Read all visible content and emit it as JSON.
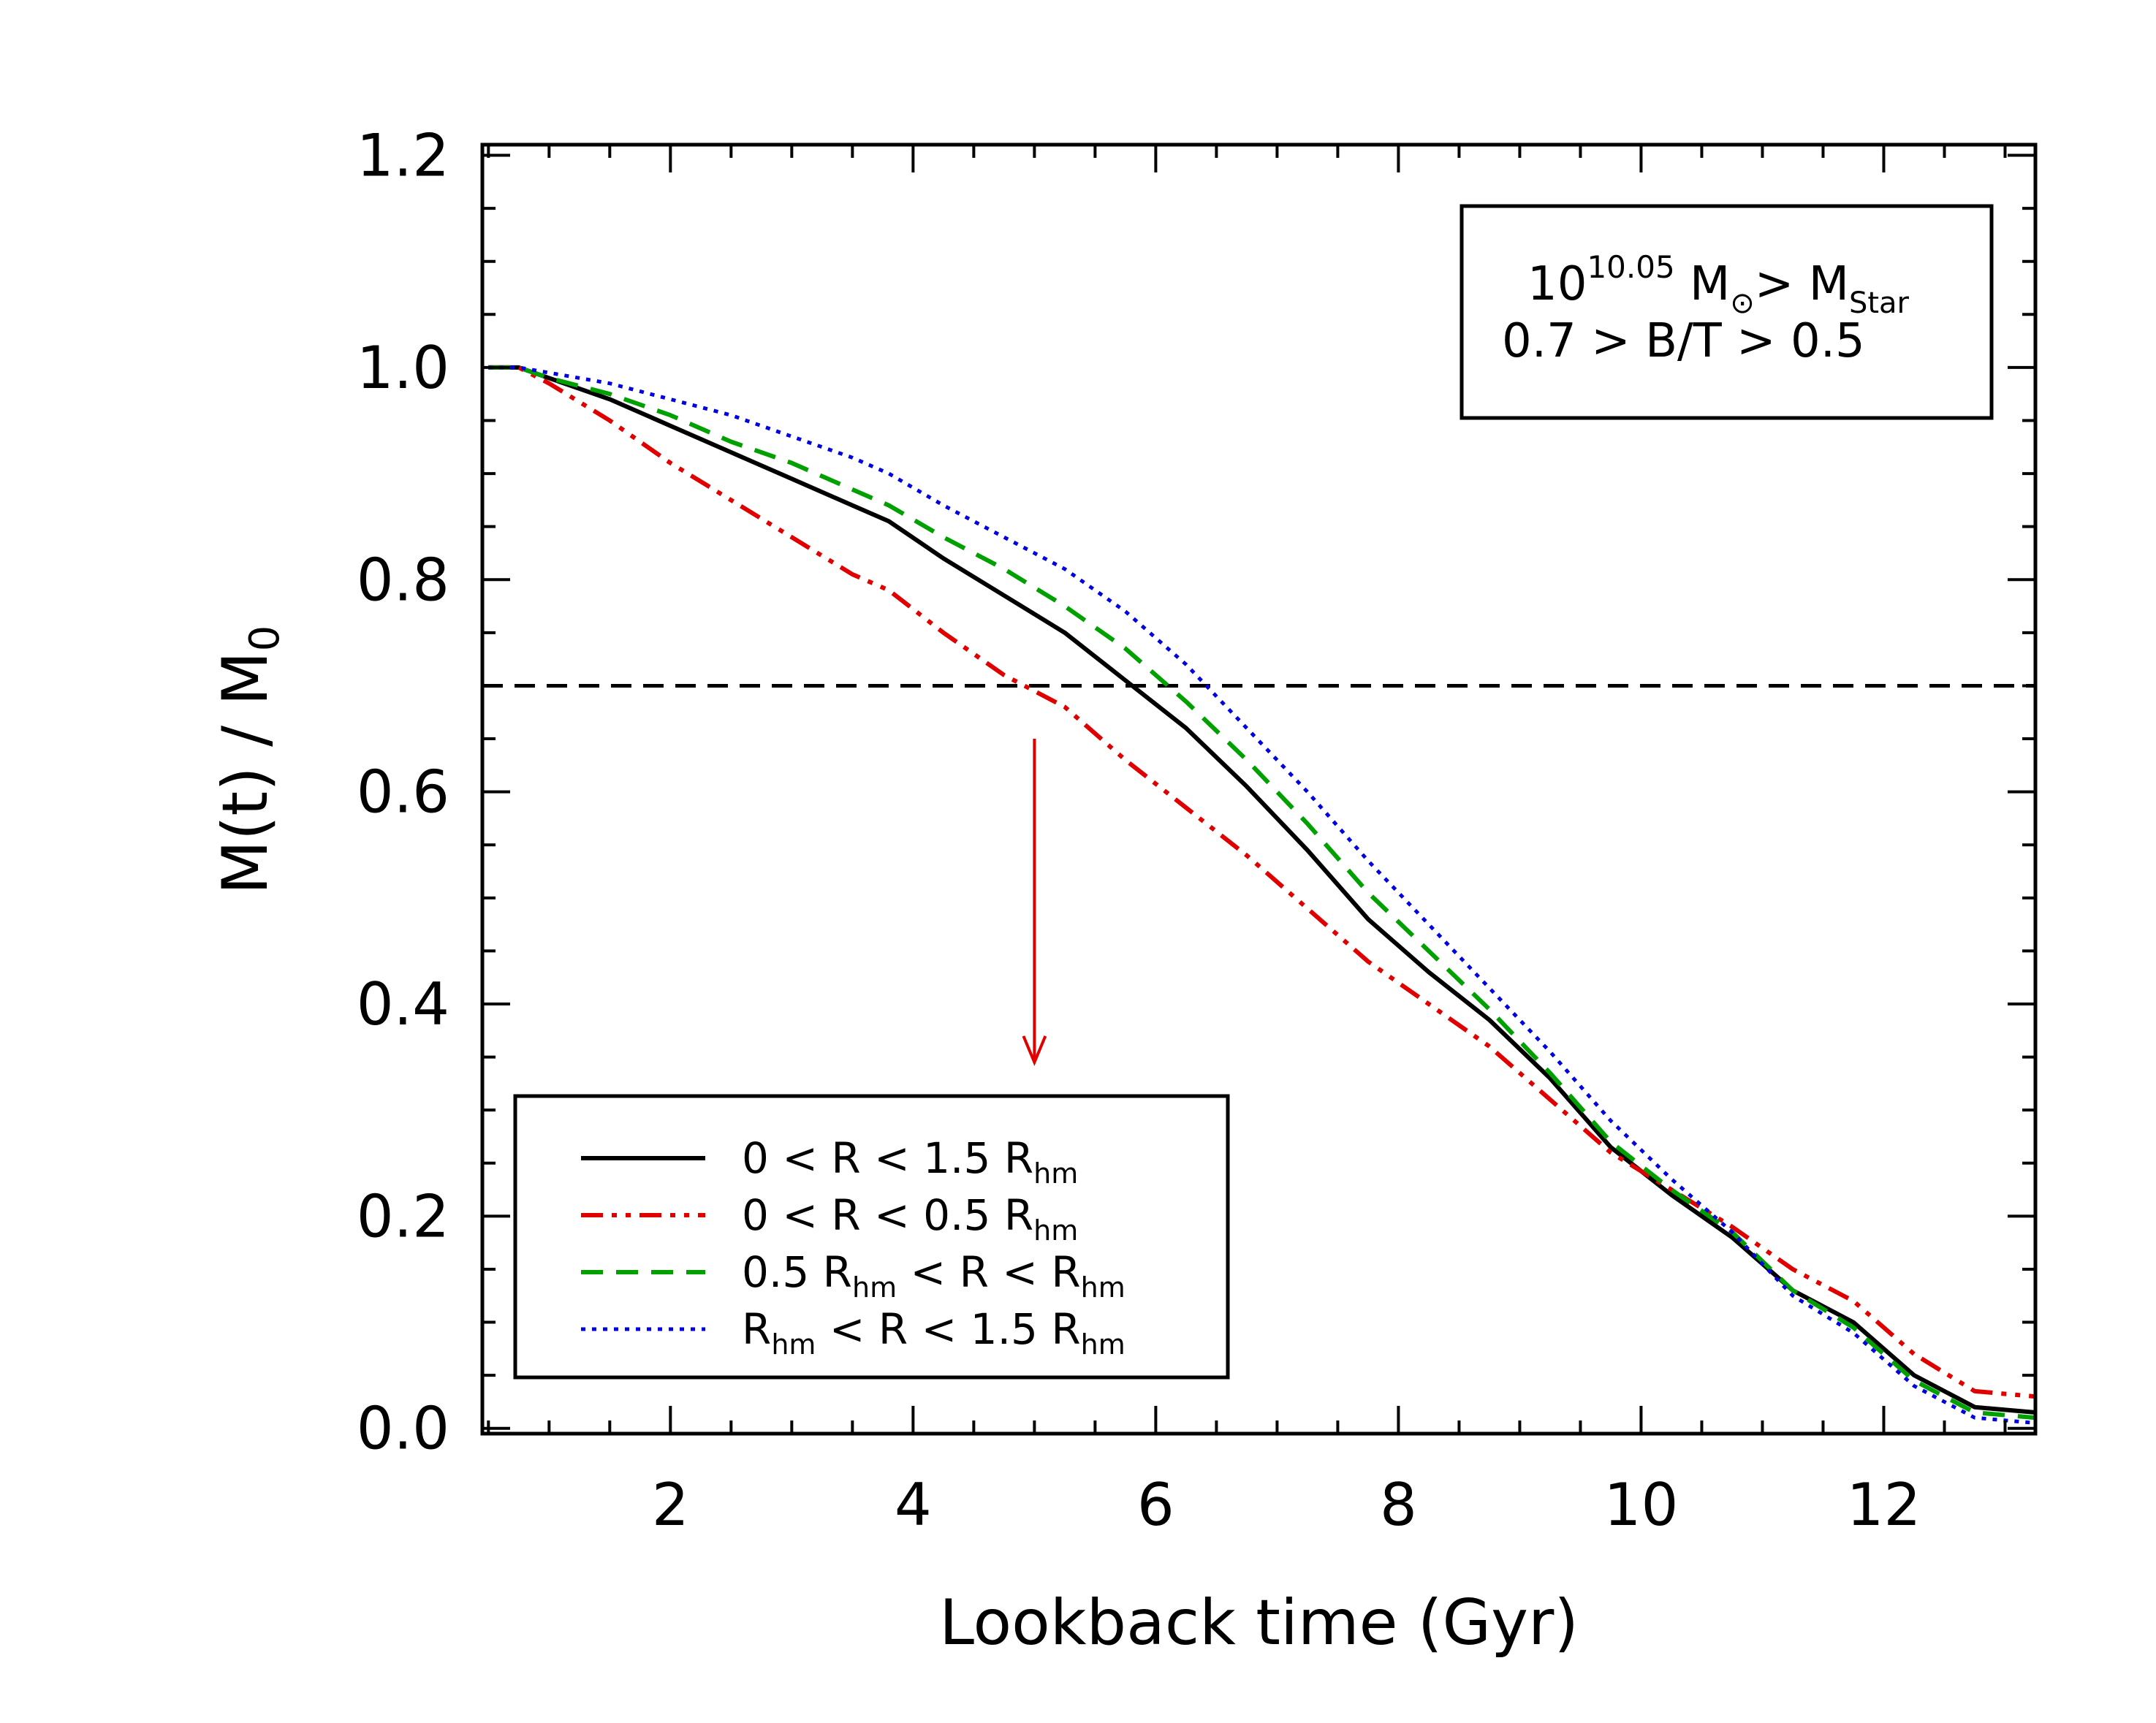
{
  "chart_data": {
    "type": "line",
    "xlabel": "Lookback time (Gyr)",
    "ylabel_main": "M(t)  /  M",
    "ylabel_sub": "0",
    "xlim": [
      0.45,
      13.25
    ],
    "ylim": [
      -0.005,
      1.21
    ],
    "x_ticks": [
      2,
      4,
      6,
      8,
      10,
      12
    ],
    "y_ticks": [
      0.0,
      0.2,
      0.4,
      0.6,
      0.8,
      1.0,
      1.2
    ],
    "y_tick_labels": [
      "0.0",
      "0.2",
      "0.4",
      "0.6",
      "0.8",
      "1.0",
      "1.2"
    ],
    "reference_line": {
      "y": 0.7,
      "style": "dashed",
      "color": "#000000"
    },
    "arrow": {
      "x": 5.0,
      "from_y": 0.65,
      "to_y": 0.345,
      "color": "#e00000"
    },
    "annotation": {
      "line1": {
        "pre": "10",
        "sup": "10.05",
        "mid": " M",
        "sun": "⊙",
        "gt": "> M",
        "sub": "Star"
      },
      "line2": "0.7 > B/T > 0.5"
    },
    "series": [
      {
        "style": "solid",
        "color": "#000000",
        "legend": {
          "parts": [
            [
              "0 < R < 1.5 R",
              ""
            ],
            [
              "hm",
              "sub"
            ]
          ]
        },
        "x": [
          0.5,
          0.75,
          1.0,
          1.5,
          2.0,
          2.5,
          3.0,
          3.5,
          3.8,
          4.25,
          4.75,
          5.25,
          5.75,
          6.25,
          6.75,
          7.25,
          7.75,
          8.25,
          8.75,
          9.25,
          9.75,
          10.25,
          10.75,
          11.25,
          11.75,
          12.25,
          12.75,
          13.25
        ],
        "y": [
          1.0,
          1.0,
          0.99,
          0.97,
          0.945,
          0.92,
          0.895,
          0.87,
          0.855,
          0.82,
          0.785,
          0.75,
          0.705,
          0.66,
          0.605,
          0.545,
          0.48,
          0.43,
          0.385,
          0.33,
          0.265,
          0.22,
          0.18,
          0.13,
          0.1,
          0.05,
          0.02,
          0.015
        ]
      },
      {
        "style": "dashdotdot",
        "color": "#e00000",
        "legend": {
          "parts": [
            [
              "0 < R < 0.5 R",
              ""
            ],
            [
              "hm",
              "sub"
            ]
          ]
        },
        "x": [
          0.5,
          0.75,
          1.0,
          1.5,
          2.0,
          2.5,
          3.0,
          3.5,
          3.8,
          4.25,
          4.75,
          5.25,
          5.75,
          6.25,
          6.75,
          7.25,
          7.75,
          8.25,
          8.75,
          9.25,
          9.75,
          10.25,
          10.75,
          11.25,
          11.75,
          12.25,
          12.75,
          13.25
        ],
        "y": [
          1.0,
          1.0,
          0.985,
          0.95,
          0.91,
          0.875,
          0.84,
          0.805,
          0.79,
          0.75,
          0.71,
          0.68,
          0.63,
          0.585,
          0.54,
          0.49,
          0.44,
          0.4,
          0.36,
          0.31,
          0.26,
          0.225,
          0.19,
          0.15,
          0.12,
          0.07,
          0.035,
          0.03
        ]
      },
      {
        "style": "dashed",
        "color": "#00a000",
        "legend": {
          "parts": [
            [
              "0.5 R",
              ""
            ],
            [
              "hm",
              "sub"
            ],
            [
              " < R <  R",
              ""
            ],
            [
              "hm",
              "sub"
            ]
          ]
        },
        "x": [
          0.5,
          0.75,
          1.0,
          1.5,
          2.0,
          2.5,
          3.0,
          3.5,
          3.8,
          4.25,
          4.75,
          5.25,
          5.75,
          6.25,
          6.75,
          7.25,
          7.75,
          8.25,
          8.75,
          9.25,
          9.75,
          10.25,
          10.75,
          11.25,
          11.75,
          12.25,
          12.75,
          13.25
        ],
        "y": [
          1.0,
          1.0,
          0.99,
          0.975,
          0.955,
          0.93,
          0.91,
          0.885,
          0.87,
          0.84,
          0.81,
          0.775,
          0.735,
          0.685,
          0.63,
          0.57,
          0.505,
          0.45,
          0.395,
          0.335,
          0.27,
          0.225,
          0.185,
          0.13,
          0.095,
          0.045,
          0.015,
          0.01
        ]
      },
      {
        "style": "dotted",
        "color": "#0000e0",
        "legend": {
          "parts": [
            [
              "R",
              ""
            ],
            [
              "hm",
              "sub"
            ],
            [
              " < R < 1.5 R",
              ""
            ],
            [
              "hm",
              "sub"
            ]
          ]
        },
        "x": [
          0.5,
          0.75,
          1.0,
          1.5,
          2.0,
          2.5,
          3.0,
          3.5,
          3.8,
          4.25,
          4.75,
          5.25,
          5.75,
          6.25,
          6.75,
          7.25,
          7.75,
          8.25,
          8.75,
          9.25,
          9.75,
          10.25,
          10.75,
          11.25,
          11.75,
          12.25,
          12.75,
          13.25
        ],
        "y": [
          1.0,
          1.0,
          0.995,
          0.985,
          0.97,
          0.955,
          0.935,
          0.915,
          0.9,
          0.87,
          0.84,
          0.81,
          0.77,
          0.72,
          0.66,
          0.6,
          0.535,
          0.475,
          0.415,
          0.355,
          0.29,
          0.235,
          0.185,
          0.125,
          0.09,
          0.04,
          0.01,
          0.005
        ]
      }
    ]
  }
}
